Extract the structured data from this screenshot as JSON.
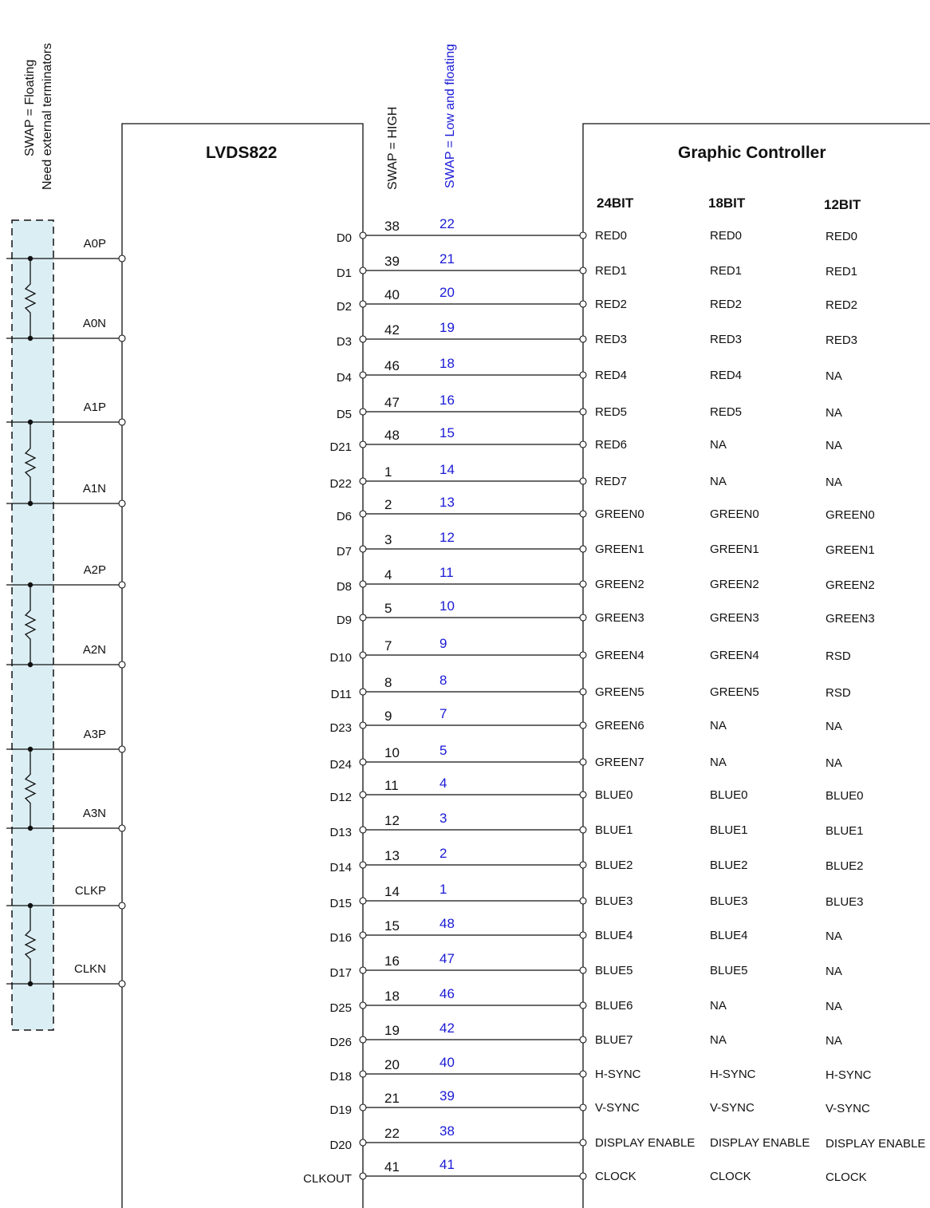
{
  "labels": {
    "swap_floating_line1": "SWAP = Floating",
    "swap_floating_line2": "Need external terminators",
    "swap_high": "SWAP = HIGH",
    "swap_low": "SWAP = Low and floating",
    "lvds_title": "LVDS822",
    "controller_title": "Graphic Controller",
    "col_24bit": "24BIT",
    "col_18bit": "18BIT",
    "col_12bit": "12BIT"
  },
  "colors": {
    "blue_text": "#1a1ad6",
    "terminator_fill": "#dbeef4",
    "line": "#111111"
  },
  "lvds_outputs": [
    "A0P",
    "A0N",
    "A1P",
    "A1N",
    "A2P",
    "A2N",
    "A3P",
    "A3N",
    "CLKP",
    "CLKN"
  ],
  "signals": [
    {
      "pin": "D0",
      "high": "38",
      "low": "22",
      "b24": "RED0",
      "b18": "RED0",
      "b12": "RED0"
    },
    {
      "pin": "D1",
      "high": "39",
      "low": "21",
      "b24": "RED1",
      "b18": "RED1",
      "b12": "RED1"
    },
    {
      "pin": "D2",
      "high": "40",
      "low": "20",
      "b24": "RED2",
      "b18": "RED2",
      "b12": "RED2"
    },
    {
      "pin": "D3",
      "high": "42",
      "low": "19",
      "b24": "RED3",
      "b18": "RED3",
      "b12": "RED3"
    },
    {
      "pin": "D4",
      "high": "46",
      "low": "18",
      "b24": "RED4",
      "b18": "RED4",
      "b12": "NA"
    },
    {
      "pin": "D5",
      "high": "47",
      "low": "16",
      "b24": "RED5",
      "b18": "RED5",
      "b12": "NA"
    },
    {
      "pin": "D21",
      "high": "48",
      "low": "15",
      "b24": "RED6",
      "b18": "NA",
      "b12": "NA"
    },
    {
      "pin": "D22",
      "high": "1",
      "low": "14",
      "b24": "RED7",
      "b18": "NA",
      "b12": "NA"
    },
    {
      "pin": "D6",
      "high": "2",
      "low": "13",
      "b24": "GREEN0",
      "b18": "GREEN0",
      "b12": "GREEN0"
    },
    {
      "pin": "D7",
      "high": "3",
      "low": "12",
      "b24": "GREEN1",
      "b18": "GREEN1",
      "b12": "GREEN1"
    },
    {
      "pin": "D8",
      "high": "4",
      "low": "11",
      "b24": "GREEN2",
      "b18": "GREEN2",
      "b12": "GREEN2"
    },
    {
      "pin": "D9",
      "high": "5",
      "low": "10",
      "b24": "GREEN3",
      "b18": "GREEN3",
      "b12": "GREEN3"
    },
    {
      "pin": "D10",
      "high": "7",
      "low": "9",
      "b24": "GREEN4",
      "b18": "GREEN4",
      "b12": "RSD"
    },
    {
      "pin": "D11",
      "high": "8",
      "low": "8",
      "b24": "GREEN5",
      "b18": "GREEN5",
      "b12": "RSD"
    },
    {
      "pin": "D23",
      "high": "9",
      "low": "7",
      "b24": "GREEN6",
      "b18": "NA",
      "b12": "NA"
    },
    {
      "pin": "D24",
      "high": "10",
      "low": "5",
      "b24": "GREEN7",
      "b18": "NA",
      "b12": "NA"
    },
    {
      "pin": "D12",
      "high": "11",
      "low": "4",
      "b24": "BLUE0",
      "b18": "BLUE0",
      "b12": "BLUE0"
    },
    {
      "pin": "D13",
      "high": "12",
      "low": "3",
      "b24": "BLUE1",
      "b18": "BLUE1",
      "b12": "BLUE1"
    },
    {
      "pin": "D14",
      "high": "13",
      "low": "2",
      "b24": "BLUE2",
      "b18": "BLUE2",
      "b12": "BLUE2"
    },
    {
      "pin": "D15",
      "high": "14",
      "low": "1",
      "b24": "BLUE3",
      "b18": "BLUE3",
      "b12": "BLUE3"
    },
    {
      "pin": "D16",
      "high": "15",
      "low": "48",
      "b24": "BLUE4",
      "b18": "BLUE4",
      "b12": "NA"
    },
    {
      "pin": "D17",
      "high": "16",
      "low": "47",
      "b24": "BLUE5",
      "b18": "BLUE5",
      "b12": "NA"
    },
    {
      "pin": "D25",
      "high": "18",
      "low": "46",
      "b24": "BLUE6",
      "b18": "NA",
      "b12": "NA"
    },
    {
      "pin": "D26",
      "high": "19",
      "low": "42",
      "b24": "BLUE7",
      "b18": "NA",
      "b12": "NA"
    },
    {
      "pin": "D18",
      "high": "20",
      "low": "40",
      "b24": "H-SYNC",
      "b18": "H-SYNC",
      "b12": "H-SYNC"
    },
    {
      "pin": "D19",
      "high": "21",
      "low": "39",
      "b24": "V-SYNC",
      "b18": "V-SYNC",
      "b12": "V-SYNC"
    },
    {
      "pin": "D20",
      "high": "22",
      "low": "38",
      "b24": "DISPLAY ENABLE",
      "b18": "DISPLAY ENABLE",
      "b12": "DISPLAY ENABLE"
    },
    {
      "pin": "CLKOUT",
      "high": "41",
      "low": "41",
      "b24": "CLOCK",
      "b18": "CLOCK",
      "b12": "CLOCK"
    }
  ]
}
